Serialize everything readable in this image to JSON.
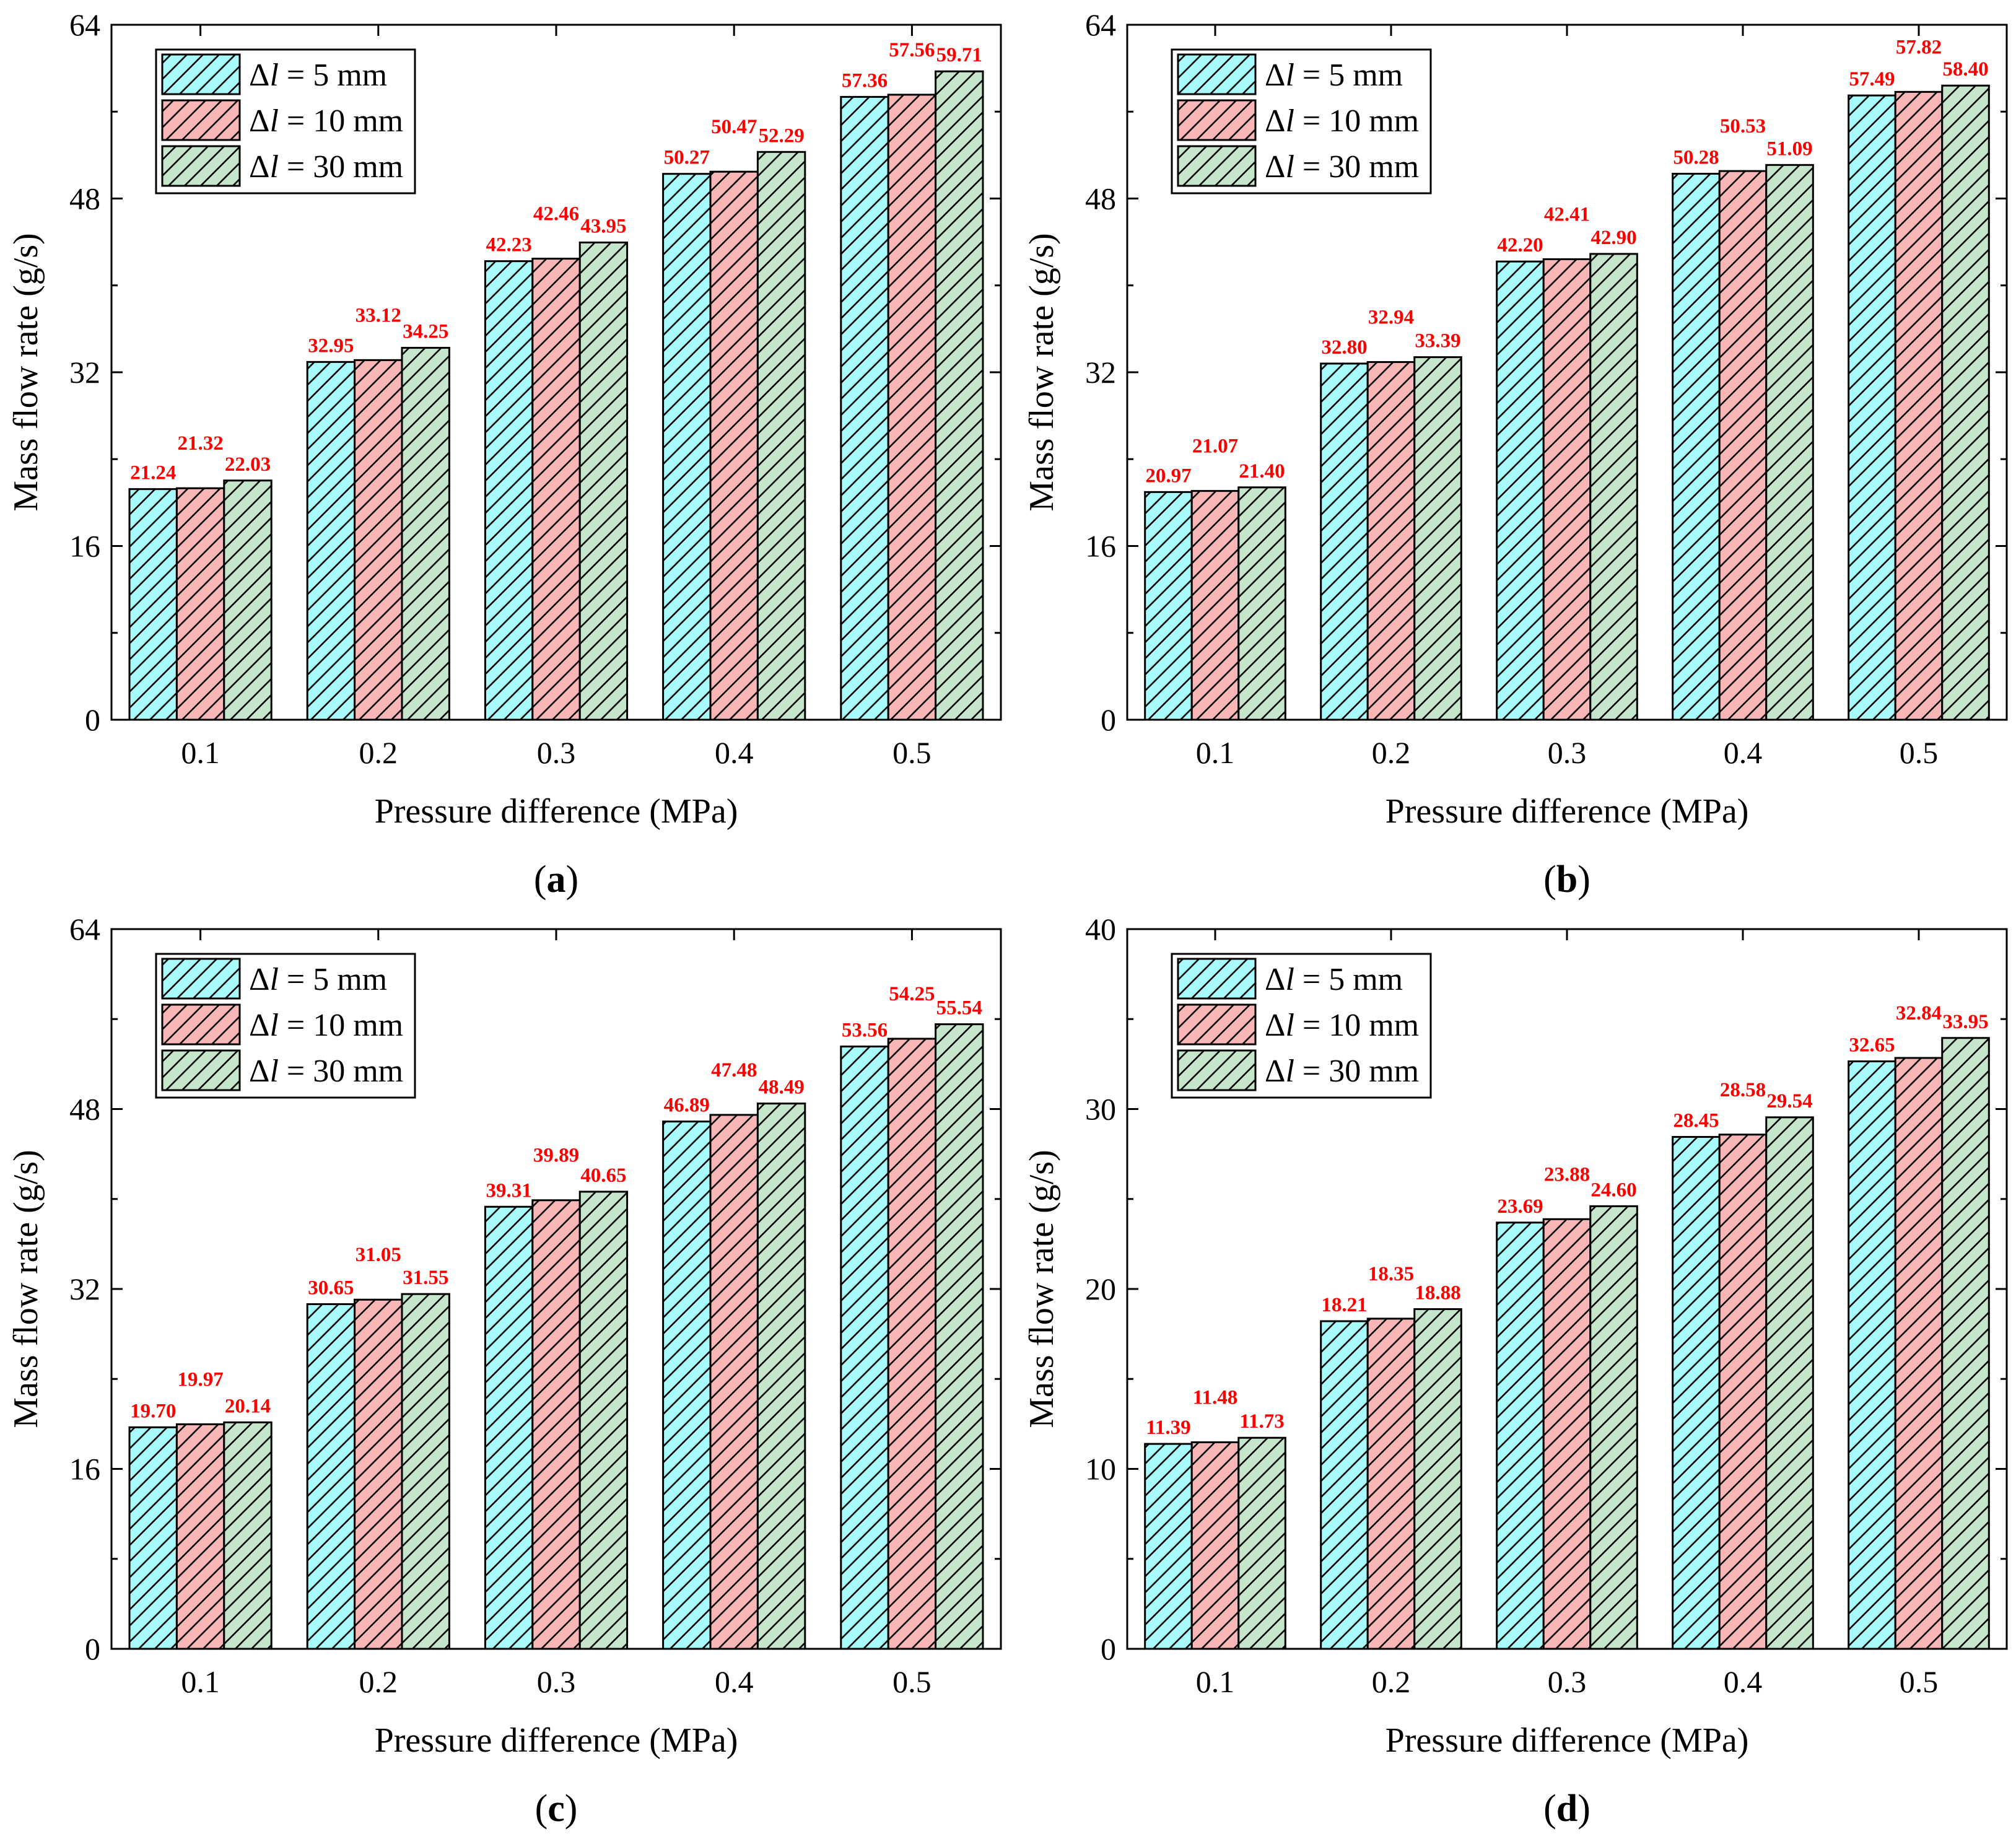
{
  "figure": {
    "colors": {
      "d5": "#a8fafa",
      "d10": "#f8b6b6",
      "d30": "#c6e6cc",
      "value_label": "#ff0000"
    },
    "series_legend": [
      "Δl = 5 mm",
      "Δl = 10 mm",
      "Δl = 30 mm"
    ]
  },
  "chart_data": [
    {
      "type": "bar",
      "panel_label": "a",
      "xlabel": "Pressure difference (MPa)",
      "ylabel": "Mass flow rate (g/s)",
      "categories": [
        "0.1",
        "0.2",
        "0.3",
        "0.4",
        "0.5"
      ],
      "ylim": [
        0,
        64
      ],
      "yticks": [
        "0",
        "16",
        "32",
        "48",
        "64"
      ],
      "legend_position": "top-left",
      "series": [
        {
          "name": "Δl = 5 mm",
          "symbol": "Δ",
          "var": "l",
          "rest": " = 5 mm",
          "values": [
            21.24,
            32.95,
            42.23,
            50.27,
            57.36
          ],
          "labels": [
            "21.24",
            "32.95",
            "42.23",
            "50.27",
            "57.36"
          ]
        },
        {
          "name": "Δl = 10 mm",
          "symbol": "Δ",
          "var": "l",
          "rest": " = 10 mm",
          "values": [
            21.32,
            33.12,
            42.46,
            50.47,
            57.56
          ],
          "labels": [
            "21.32",
            "33.12",
            "42.46",
            "50.47",
            "57.56"
          ]
        },
        {
          "name": "Δl = 30 mm",
          "symbol": "Δ",
          "var": "l",
          "rest": " = 30 mm",
          "values": [
            22.03,
            34.25,
            43.95,
            52.29,
            59.71
          ],
          "labels": [
            "22.03",
            "34.25",
            "43.95",
            "52.29",
            "59.71"
          ]
        }
      ]
    },
    {
      "type": "bar",
      "panel_label": "b",
      "xlabel": "Pressure difference (MPa)",
      "ylabel": "Mass flow rate (g/s)",
      "categories": [
        "0.1",
        "0.2",
        "0.3",
        "0.4",
        "0.5"
      ],
      "ylim": [
        0,
        64
      ],
      "yticks": [
        "0",
        "16",
        "32",
        "48",
        "64"
      ],
      "legend_position": "top-left",
      "series": [
        {
          "name": "Δl = 5 mm",
          "symbol": "Δ",
          "var": "l",
          "rest": " = 5 mm",
          "values": [
            20.97,
            32.8,
            42.2,
            50.28,
            57.49
          ],
          "labels": [
            "20.97",
            "32.80",
            "42.20",
            "50.28",
            "57.49"
          ]
        },
        {
          "name": "Δl = 10 mm",
          "symbol": "Δ",
          "var": "l",
          "rest": " = 10 mm",
          "values": [
            21.07,
            32.94,
            42.41,
            50.53,
            57.82
          ],
          "labels": [
            "21.07",
            "32.94",
            "42.41",
            "50.53",
            "57.82"
          ]
        },
        {
          "name": "Δl = 30 mm",
          "symbol": "Δ",
          "var": "l",
          "rest": " = 30 mm",
          "values": [
            21.4,
            33.39,
            42.9,
            51.09,
            58.4
          ],
          "labels": [
            "21.40",
            "33.39",
            "42.90",
            "51.09",
            "58.40"
          ]
        }
      ]
    },
    {
      "type": "bar",
      "panel_label": "c",
      "xlabel": "Pressure difference (MPa)",
      "ylabel": "Mass flow rate (g/s)",
      "categories": [
        "0.1",
        "0.2",
        "0.3",
        "0.4",
        "0.5"
      ],
      "ylim": [
        0,
        64
      ],
      "yticks": [
        "0",
        "16",
        "32",
        "48",
        "64"
      ],
      "legend_position": "top-left",
      "series": [
        {
          "name": "Δl = 5 mm",
          "symbol": "Δ",
          "var": "l",
          "rest": " = 5 mm",
          "values": [
            19.7,
            30.65,
            39.31,
            46.89,
            53.56
          ],
          "labels": [
            "19.70",
            "30.65",
            "39.31",
            "46.89",
            "53.56"
          ]
        },
        {
          "name": "Δl = 10 mm",
          "symbol": "Δ",
          "var": "l",
          "rest": " = 10 mm",
          "values": [
            19.97,
            31.05,
            39.89,
            47.48,
            54.25
          ],
          "labels": [
            "19.97",
            "31.05",
            "39.89",
            "47.48",
            "54.25"
          ]
        },
        {
          "name": "Δl = 30 mm",
          "symbol": "Δ",
          "var": "l",
          "rest": " = 30 mm",
          "values": [
            20.14,
            31.55,
            40.65,
            48.49,
            55.54
          ],
          "labels": [
            "20.14",
            "31.55",
            "40.65",
            "48.49",
            "55.54"
          ]
        }
      ]
    },
    {
      "type": "bar",
      "panel_label": "d",
      "xlabel": "Pressure difference (MPa)",
      "ylabel": "Mass flow rate (g/s)",
      "categories": [
        "0.1",
        "0.2",
        "0.3",
        "0.4",
        "0.5"
      ],
      "ylim": [
        0,
        40
      ],
      "yticks": [
        "0",
        "10",
        "20",
        "30",
        "40"
      ],
      "legend_position": "top-left",
      "series": [
        {
          "name": "Δl = 5 mm",
          "symbol": "Δ",
          "var": "l",
          "rest": " = 5 mm",
          "values": [
            11.39,
            18.21,
            23.69,
            28.45,
            32.65
          ],
          "labels": [
            "11.39",
            "18.21",
            "23.69",
            "28.45",
            "32.65"
          ]
        },
        {
          "name": "Δl = 10 mm",
          "symbol": "Δ",
          "var": "l",
          "rest": " = 10 mm",
          "values": [
            11.48,
            18.35,
            23.88,
            28.58,
            32.84
          ],
          "labels": [
            "11.48",
            "18.35",
            "23.88",
            "28.58",
            "32.84"
          ]
        },
        {
          "name": "Δl = 30 mm",
          "symbol": "Δ",
          "var": "l",
          "rest": " = 30 mm",
          "values": [
            11.73,
            18.88,
            24.6,
            29.54,
            33.95
          ],
          "labels": [
            "11.73",
            "18.88",
            "24.60",
            "29.54",
            "33.95"
          ]
        }
      ]
    }
  ]
}
